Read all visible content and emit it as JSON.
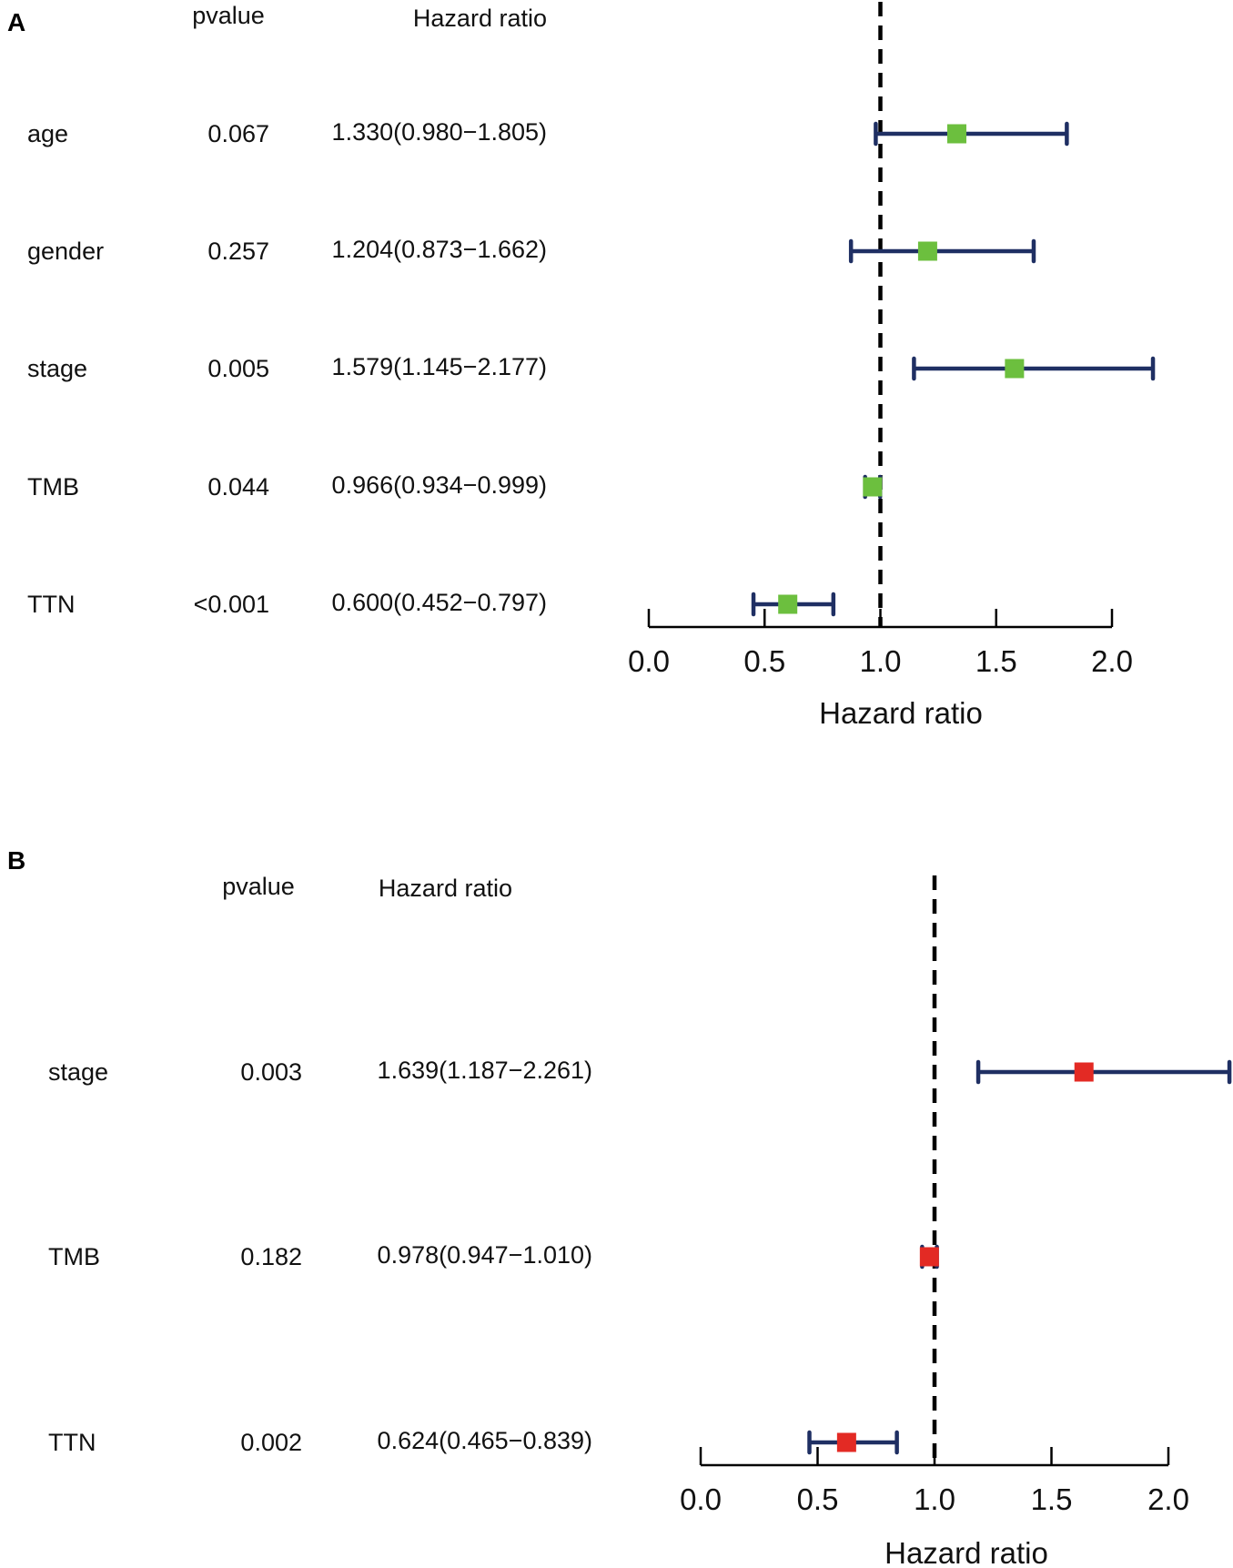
{
  "chart_data": [
    {
      "type": "forest",
      "panel_label": "A",
      "columns": {
        "pvalue": "pvalue",
        "hr": "Hazard ratio"
      },
      "xlabel": "Hazard ratio",
      "xlim": [
        0.0,
        2.0
      ],
      "xticks": [
        "0.0",
        "0.5",
        "1.0",
        "1.5",
        "2.0"
      ],
      "reference_line": 1.0,
      "marker_color": "#6cbf3e",
      "ci_color": "#1f2f63",
      "rows": [
        {
          "label": "age",
          "pvalue": "0.067",
          "hr_text": "1.330(0.980−1.805)",
          "hr": 1.33,
          "lower": 0.98,
          "upper": 1.805
        },
        {
          "label": "gender",
          "pvalue": "0.257",
          "hr_text": "1.204(0.873−1.662)",
          "hr": 1.204,
          "lower": 0.873,
          "upper": 1.662
        },
        {
          "label": "stage",
          "pvalue": "0.005",
          "hr_text": "1.579(1.145−2.177)",
          "hr": 1.579,
          "lower": 1.145,
          "upper": 2.177
        },
        {
          "label": "TMB",
          "pvalue": "0.044",
          "hr_text": "0.966(0.934−0.999)",
          "hr": 0.966,
          "lower": 0.934,
          "upper": 0.999
        },
        {
          "label": "TTN",
          "pvalue": "<0.001",
          "hr_text": "0.600(0.452−0.797)",
          "hr": 0.6,
          "lower": 0.452,
          "upper": 0.797
        }
      ]
    },
    {
      "type": "forest",
      "panel_label": "B",
      "columns": {
        "pvalue": "pvalue",
        "hr": "Hazard ratio"
      },
      "xlabel": "Hazard ratio",
      "xlim": [
        0.0,
        2.0
      ],
      "xticks": [
        "0.0",
        "0.5",
        "1.0",
        "1.5",
        "2.0"
      ],
      "reference_line": 1.0,
      "marker_color": "#e32a24",
      "ci_color": "#1f2f63",
      "rows": [
        {
          "label": "stage",
          "pvalue": "0.003",
          "hr_text": "1.639(1.187−2.261)",
          "hr": 1.639,
          "lower": 1.187,
          "upper": 2.261
        },
        {
          "label": "TMB",
          "pvalue": "0.182",
          "hr_text": "0.978(0.947−1.010)",
          "hr": 0.978,
          "lower": 0.947,
          "upper": 1.01
        },
        {
          "label": "TTN",
          "pvalue": "0.002",
          "hr_text": "0.624(0.465−0.839)",
          "hr": 0.624,
          "lower": 0.465,
          "upper": 0.839
        }
      ]
    }
  ]
}
